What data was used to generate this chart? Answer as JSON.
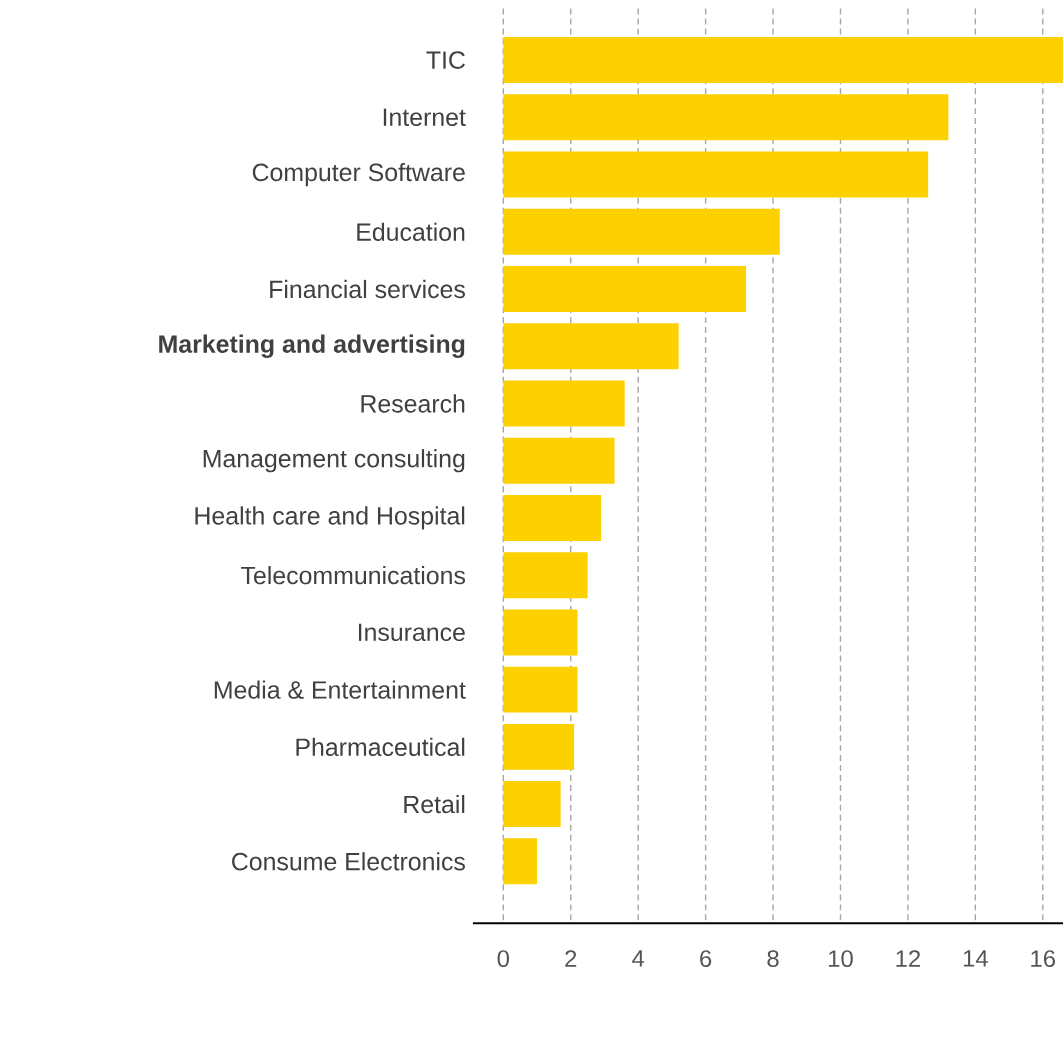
{
  "chart_data": {
    "type": "bar",
    "orientation": "horizontal",
    "categories": [
      "TIC",
      "Internet",
      "Computer Software",
      "Education",
      "Financial services",
      "**Marketing and advertising**",
      "Research",
      "Management consulting",
      "Health care and Hospital",
      "Telecommunications",
      "Insurance",
      "Media & Entertainment",
      "Pharmaceutical",
      "Retail",
      "Consume Electronics"
    ],
    "values": [
      16.6,
      13.2,
      12.6,
      8.2,
      7.2,
      5.2,
      3.6,
      3.3,
      2.9,
      2.5,
      2.2,
      2.2,
      2.1,
      1.7,
      1.0
    ],
    "color": "#fdd000",
    "xlim": [
      -0.9,
      16.6
    ],
    "xticks": [
      0,
      2,
      4,
      6,
      8,
      10,
      12,
      14,
      16
    ],
    "grid": "x"
  }
}
